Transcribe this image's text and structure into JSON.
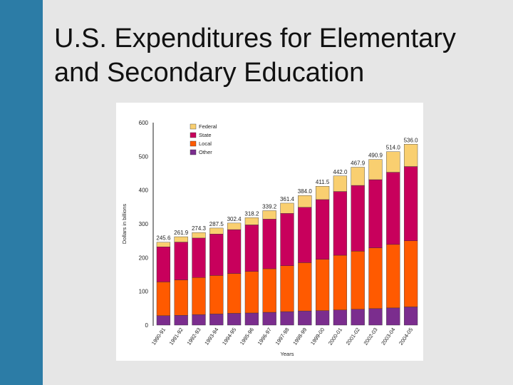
{
  "slide": {
    "title_line1": "U.S. Expenditures for Elementary",
    "title_line2": "and Secondary Education"
  },
  "colors": {
    "background": "#e6e6e6",
    "side_bar": "#2c7ca6",
    "federal": "#f9cf70",
    "state": "#c8005c",
    "local": "#ff5a00",
    "other": "#7b2d8e"
  },
  "chart_data": {
    "type": "bar",
    "stacked": true,
    "title": "",
    "xlabel": "Years",
    "ylabel": "Dollars in billions",
    "ylim": [
      0,
      600
    ],
    "yticks": [
      0,
      100,
      200,
      300,
      400,
      500,
      600
    ],
    "grid": false,
    "legend_position": "top-left",
    "categories": [
      "1990-91",
      "1991-92",
      "1992-93",
      "1993-94",
      "1994-95",
      "1995-96",
      "1996-97",
      "1997-98",
      "1998-99",
      "1999-00",
      "2000-01",
      "2001-02",
      "2002-03",
      "2003-04",
      "2004-05"
    ],
    "totals": [
      245.6,
      261.9,
      274.3,
      287.5,
      302.4,
      318.2,
      339.2,
      361.4,
      384.0,
      411.5,
      442.0,
      467.9,
      490.9,
      514.0,
      536.0
    ],
    "total_labels": [
      "245.6",
      "261.9",
      "274.3",
      "287.5",
      "302.4",
      "318.2",
      "339.2",
      "361.4",
      "384.0",
      "411.5",
      "442.0",
      "467.9",
      "490.9",
      "514.0",
      "536.0"
    ],
    "series": [
      {
        "name": "Other",
        "color": "#7b2d8e",
        "values": [
          28,
          29,
          31,
          33,
          35,
          36,
          38,
          40,
          42,
          43,
          45,
          47,
          49,
          51,
          54
        ]
      },
      {
        "name": "Local",
        "color": "#ff5a00",
        "values": [
          100,
          105,
          110,
          114,
          118,
          123,
          129,
          136,
          143,
          152,
          162,
          172,
          180,
          188,
          196
        ]
      },
      {
        "name": "State",
        "color": "#c8005c",
        "values": [
          104,
          112,
          117,
          123,
          130,
          138,
          147,
          155,
          164,
          177,
          189,
          195,
          202,
          214,
          220
        ]
      },
      {
        "name": "Federal",
        "color": "#f9cf70",
        "values": [
          13.6,
          15.9,
          16.3,
          17.5,
          19.4,
          21.2,
          25.2,
          30.4,
          35.0,
          39.5,
          46.0,
          53.9,
          59.9,
          61.0,
          66.0
        ]
      }
    ],
    "legend_order": [
      "Federal",
      "State",
      "Local",
      "Other"
    ]
  }
}
